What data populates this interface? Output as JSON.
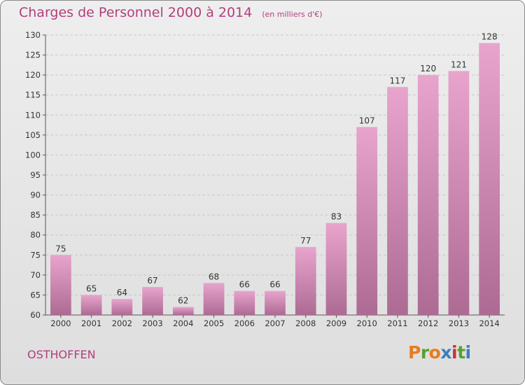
{
  "header": {
    "title": "Charges de Personnel 2000 à 2014",
    "subtitle": "(en milliers d'€)"
  },
  "footer": {
    "commune": "OSTHOFFEN",
    "logo": [
      "P",
      "r",
      "o",
      "x",
      "i",
      "t",
      "i"
    ]
  },
  "colors": {
    "title": "#b33e7d",
    "bar_top": "#e8a4cc",
    "bar_bottom": "#ad6b93",
    "logo_letters": [
      "#e87c1e",
      "#5aa02c",
      "#e87c1e",
      "#3a7fc1",
      "#c8323c",
      "#5aa02c",
      "#3a7fc1"
    ]
  },
  "chart_data": {
    "type": "bar",
    "categories": [
      "2000",
      "2001",
      "2002",
      "2003",
      "2004",
      "2005",
      "2006",
      "2007",
      "2008",
      "2009",
      "2010",
      "2011",
      "2012",
      "2013",
      "2014"
    ],
    "values": [
      75,
      65,
      64,
      67,
      62,
      68,
      66,
      66,
      77,
      83,
      107,
      117,
      120,
      121,
      128
    ],
    "value_labels": [
      "75",
      "65",
      "64",
      "67",
      "62",
      "68",
      "66",
      "66",
      "77",
      "83",
      "107",
      "117",
      "120",
      "121",
      "128"
    ],
    "ylim": [
      60,
      130
    ],
    "yticks": [
      "60",
      "65",
      "70",
      "75",
      "80",
      "85",
      "90",
      "95",
      "100",
      "105",
      "110",
      "115",
      "120",
      "125",
      "130"
    ],
    "grid": true,
    "legend": "none"
  }
}
